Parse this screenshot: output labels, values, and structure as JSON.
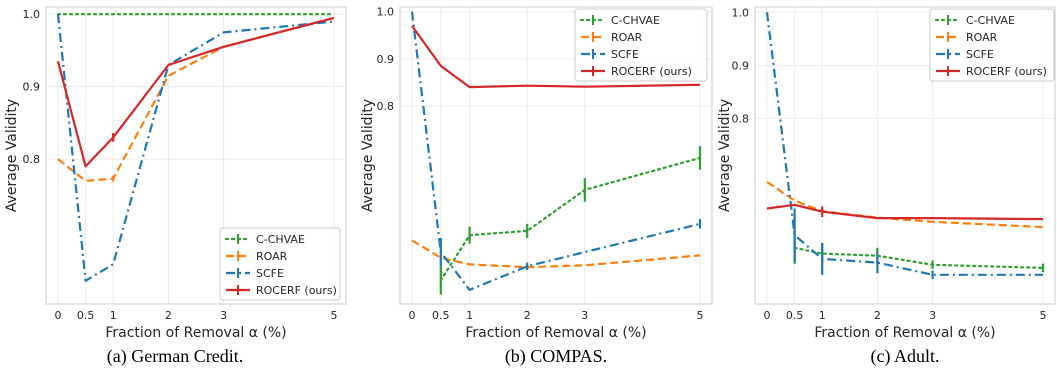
{
  "figure": {
    "colors": {
      "C-CHVAE": "#2ca02c",
      "ROAR": "#ff7f0e",
      "SCFE": "#1f77b4",
      "ROCERF (ours)": "#d62728"
    }
  },
  "chart_data": [
    {
      "type": "line",
      "caption": "(a) German Credit.",
      "xlabel": "Fraction of Removal α (%)",
      "ylabel": "Average Validity",
      "x": [
        0,
        0.5,
        1,
        2,
        3,
        5
      ],
      "x_tick_labels": [
        "0",
        "0.5",
        "1",
        "2",
        "3",
        "5"
      ],
      "y_ticks": [
        0.8,
        0.9,
        1.0
      ],
      "y_tick_labels": [
        "0.8",
        "0.9",
        "1.0"
      ],
      "ylim": [
        0.6,
        1.01
      ],
      "grid": true,
      "legend": "lower-right",
      "series": [
        {
          "name": "C-CHVAE",
          "values": [
            1.0,
            1.0,
            1.0,
            1.0,
            1.0,
            1.0
          ],
          "err": [
            0,
            0,
            0,
            0,
            0,
            0
          ]
        },
        {
          "name": "ROAR",
          "values": [
            0.8,
            0.77,
            0.773,
            0.915,
            0.955,
            0.995
          ],
          "err": [
            0,
            0,
            0.004,
            0,
            0,
            0
          ]
        },
        {
          "name": "SCFE",
          "values": [
            1.0,
            0.632,
            0.655,
            0.93,
            0.975,
            0.99
          ],
          "err": [
            0,
            0,
            0,
            0,
            0,
            0
          ]
        },
        {
          "name": "ROCERF (ours)",
          "values": [
            0.935,
            0.79,
            0.83,
            0.93,
            0.955,
            0.995
          ],
          "err": [
            0,
            0,
            0.006,
            0,
            0,
            0
          ]
        }
      ]
    },
    {
      "type": "line",
      "caption": "(b) COMPAS.",
      "xlabel": "Fraction of Removal α (%)",
      "ylabel": "Average Validity",
      "x": [
        0,
        0.5,
        1,
        2,
        3,
        5
      ],
      "x_tick_labels": [
        "0",
        "0.5",
        "1",
        "2",
        "3",
        "5"
      ],
      "y_ticks": [
        0.8,
        0.9,
        1.0
      ],
      "y_tick_labels": [
        "0.8",
        "0.9",
        "1.0"
      ],
      "ylim": [
        0.38,
        1.01
      ],
      "grid": true,
      "legend": "top-right",
      "series": [
        {
          "name": "C-CHVAE",
          "values": [
            null,
            0.43,
            0.526,
            0.535,
            0.622,
            0.69
          ],
          "err": [
            0,
            0.03,
            0.018,
            0.015,
            0.025,
            0.025
          ]
        },
        {
          "name": "ROAR",
          "values": [
            0.515,
            0.478,
            0.464,
            0.458,
            0.462,
            0.483
          ],
          "err": [
            0,
            0,
            0,
            0,
            0,
            0
          ]
        },
        {
          "name": "SCFE",
          "values": [
            1.0,
            0.49,
            0.41,
            0.46,
            0.49,
            0.55
          ],
          "err": [
            0,
            0.03,
            0,
            0.008,
            0,
            0.01
          ]
        },
        {
          "name": "ROCERF (ours)",
          "values": [
            0.97,
            0.885,
            0.84,
            0.843,
            0.841,
            0.845
          ],
          "err": [
            0,
            0,
            0,
            0,
            0,
            0
          ]
        }
      ]
    },
    {
      "type": "line",
      "caption": "(c) Adult.",
      "xlabel": "Fraction of Removal α (%)",
      "ylabel": "Average Validity",
      "x": [
        0,
        0.5,
        1,
        2,
        3,
        5
      ],
      "x_tick_labels": [
        "0",
        "0.5",
        "1",
        "2",
        "3",
        "5"
      ],
      "y_ticks": [
        0.8,
        0.9,
        1.0
      ],
      "y_tick_labels": [
        "0.8",
        "0.9",
        "1.0"
      ],
      "ylim": [
        0.45,
        1.01
      ],
      "grid": true,
      "legend": "top-right",
      "series": [
        {
          "name": "C-CHVAE",
          "values": [
            null,
            0.556,
            0.545,
            0.541,
            0.524,
            0.518
          ],
          "err": [
            0,
            0.03,
            0.02,
            0.015,
            0.008,
            0.008
          ]
        },
        {
          "name": "ROAR",
          "values": [
            0.68,
            0.645,
            0.625,
            0.613,
            0.605,
            0.595
          ],
          "err": [
            0,
            0,
            0,
            0,
            0,
            0
          ]
        },
        {
          "name": "SCFE",
          "values": [
            1.0,
            0.58,
            0.535,
            0.528,
            0.505,
            0.505
          ],
          "err": [
            0,
            0.05,
            0.03,
            0.02,
            0.008,
            0
          ]
        },
        {
          "name": "ROCERF (ours)",
          "values": [
            0.63,
            0.637,
            0.624,
            0.612,
            0.612,
            0.61
          ],
          "err": [
            0,
            0,
            0.01,
            0,
            0,
            0
          ]
        }
      ]
    }
  ]
}
